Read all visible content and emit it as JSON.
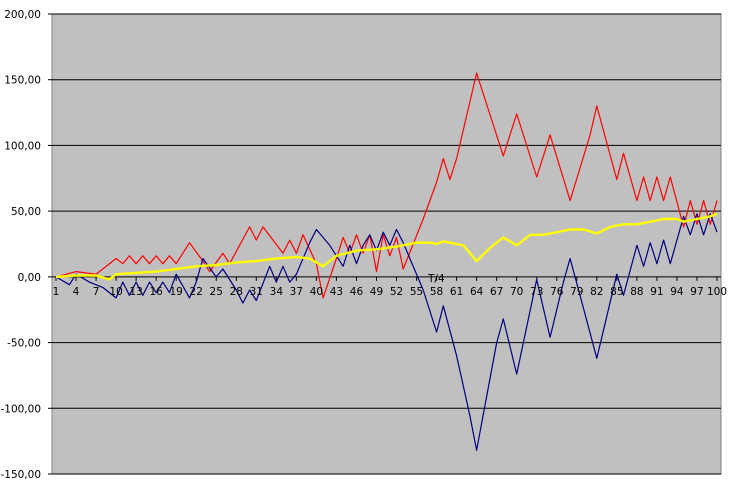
{
  "chart_data": {
    "type": "line",
    "title": "",
    "xlabel": "",
    "ylabel": "",
    "ylim": [
      -150,
      200
    ],
    "xlim": [
      1,
      100
    ],
    "grid": true,
    "legend": "none",
    "plot_background": "#c0c0c0",
    "gridline_color": "#000000",
    "y_ticks": [
      "200,00",
      "150,00",
      "100,00",
      "50,00",
      "0,00",
      "-50,00",
      "-100,00",
      "-150,00"
    ],
    "y_tick_values": [
      200,
      150,
      100,
      50,
      0,
      -50,
      -100,
      -150
    ],
    "x_tick_labels": [
      "1",
      "4",
      "7",
      "10",
      "13",
      "16",
      "19",
      "22",
      "25",
      "28",
      "31",
      "34",
      "37",
      "40",
      "43",
      "46",
      "49",
      "52",
      "55",
      "58",
      "61",
      "64",
      "67",
      "70",
      "73",
      "76",
      "79",
      "82",
      "85",
      "88",
      "91",
      "94",
      "97",
      "100"
    ],
    "x_tick_values": [
      1,
      4,
      7,
      10,
      13,
      16,
      19,
      22,
      25,
      28,
      31,
      34,
      37,
      40,
      43,
      46,
      49,
      52,
      55,
      58,
      61,
      64,
      67,
      70,
      73,
      76,
      79,
      82,
      85,
      88,
      91,
      94,
      97,
      100
    ],
    "series": [
      {
        "color": "#ff0000",
        "points": [
          [
            1,
            0
          ],
          [
            4,
            4
          ],
          [
            7,
            2
          ],
          [
            10,
            14
          ],
          [
            11,
            10
          ],
          [
            12,
            16
          ],
          [
            13,
            10
          ],
          [
            14,
            16
          ],
          [
            15,
            10
          ],
          [
            16,
            16
          ],
          [
            17,
            10
          ],
          [
            18,
            16
          ],
          [
            19,
            10
          ],
          [
            21,
            26
          ],
          [
            23,
            12
          ],
          [
            24,
            4
          ],
          [
            26,
            18
          ],
          [
            27,
            10
          ],
          [
            30,
            38
          ],
          [
            31,
            28
          ],
          [
            32,
            38
          ],
          [
            35,
            18
          ],
          [
            36,
            28
          ],
          [
            37,
            18
          ],
          [
            38,
            32
          ],
          [
            40,
            10
          ],
          [
            41,
            -16
          ],
          [
            43,
            14
          ],
          [
            44,
            30
          ],
          [
            45,
            18
          ],
          [
            46,
            32
          ],
          [
            47,
            18
          ],
          [
            48,
            32
          ],
          [
            49,
            4
          ],
          [
            50,
            32
          ],
          [
            51,
            16
          ],
          [
            52,
            30
          ],
          [
            53,
            6
          ],
          [
            56,
            44
          ],
          [
            58,
            72
          ],
          [
            59,
            90
          ],
          [
            60,
            74
          ],
          [
            61,
            90
          ],
          [
            64,
            155
          ],
          [
            68,
            92
          ],
          [
            70,
            124
          ],
          [
            73,
            76
          ],
          [
            75,
            108
          ],
          [
            78,
            58
          ],
          [
            81,
            108
          ],
          [
            82,
            130
          ],
          [
            85,
            74
          ],
          [
            86,
            94
          ],
          [
            88,
            58
          ],
          [
            89,
            76
          ],
          [
            90,
            58
          ],
          [
            91,
            76
          ],
          [
            92,
            58
          ],
          [
            93,
            76
          ],
          [
            95,
            38
          ],
          [
            96,
            58
          ],
          [
            97,
            40
          ],
          [
            98,
            58
          ],
          [
            99,
            40
          ],
          [
            100,
            58
          ]
        ]
      },
      {
        "color": "#000080",
        "points": [
          [
            1,
            0
          ],
          [
            3,
            -6
          ],
          [
            4,
            2
          ],
          [
            6,
            -4
          ],
          [
            8,
            -8
          ],
          [
            10,
            -16
          ],
          [
            11,
            -4
          ],
          [
            12,
            -14
          ],
          [
            13,
            -4
          ],
          [
            14,
            -14
          ],
          [
            15,
            -4
          ],
          [
            16,
            -12
          ],
          [
            17,
            -4
          ],
          [
            18,
            -12
          ],
          [
            19,
            2
          ],
          [
            21,
            -16
          ],
          [
            22,
            -4
          ],
          [
            23,
            14
          ],
          [
            25,
            0
          ],
          [
            26,
            6
          ],
          [
            28,
            -10
          ],
          [
            29,
            -20
          ],
          [
            30,
            -10
          ],
          [
            31,
            -18
          ],
          [
            33,
            8
          ],
          [
            34,
            -4
          ],
          [
            35,
            8
          ],
          [
            36,
            -4
          ],
          [
            37,
            2
          ],
          [
            39,
            26
          ],
          [
            40,
            36
          ],
          [
            42,
            24
          ],
          [
            44,
            8
          ],
          [
            45,
            24
          ],
          [
            46,
            10
          ],
          [
            47,
            24
          ],
          [
            48,
            32
          ],
          [
            49,
            20
          ],
          [
            50,
            34
          ],
          [
            51,
            24
          ],
          [
            52,
            36
          ],
          [
            53,
            26
          ],
          [
            56,
            -10
          ],
          [
            58,
            -42
          ],
          [
            59,
            -22
          ],
          [
            61,
            -60
          ],
          [
            63,
            -106
          ],
          [
            64,
            -132
          ],
          [
            67,
            -50
          ],
          [
            68,
            -32
          ],
          [
            70,
            -74
          ],
          [
            73,
            -2
          ],
          [
            75,
            -46
          ],
          [
            77,
            -4
          ],
          [
            78,
            14
          ],
          [
            80,
            -24
          ],
          [
            82,
            -62
          ],
          [
            85,
            2
          ],
          [
            86,
            -14
          ],
          [
            88,
            24
          ],
          [
            89,
            8
          ],
          [
            90,
            26
          ],
          [
            91,
            10
          ],
          [
            92,
            28
          ],
          [
            93,
            10
          ],
          [
            95,
            46
          ],
          [
            96,
            32
          ],
          [
            97,
            48
          ],
          [
            98,
            32
          ],
          [
            99,
            48
          ],
          [
            100,
            34
          ]
        ]
      },
      {
        "color": "#ffff00",
        "points": [
          [
            1,
            0
          ],
          [
            4,
            1
          ],
          [
            7,
            1
          ],
          [
            9,
            -2
          ],
          [
            10,
            2
          ],
          [
            13,
            3
          ],
          [
            16,
            4
          ],
          [
            19,
            6
          ],
          [
            22,
            8
          ],
          [
            25,
            9
          ],
          [
            28,
            11
          ],
          [
            31,
            12
          ],
          [
            34,
            14
          ],
          [
            37,
            15
          ],
          [
            39,
            14
          ],
          [
            41,
            8
          ],
          [
            43,
            16
          ],
          [
            46,
            20
          ],
          [
            49,
            21
          ],
          [
            52,
            23
          ],
          [
            55,
            26
          ],
          [
            57,
            26
          ],
          [
            58,
            25
          ],
          [
            59,
            27
          ],
          [
            62,
            24
          ],
          [
            64,
            12
          ],
          [
            66,
            22
          ],
          [
            68,
            30
          ],
          [
            70,
            24
          ],
          [
            72,
            32
          ],
          [
            74,
            32
          ],
          [
            76,
            34
          ],
          [
            78,
            36
          ],
          [
            80,
            36
          ],
          [
            82,
            33
          ],
          [
            84,
            38
          ],
          [
            86,
            40
          ],
          [
            88,
            40
          ],
          [
            90,
            42
          ],
          [
            92,
            44
          ],
          [
            94,
            44
          ],
          [
            95,
            42
          ],
          [
            97,
            44
          ],
          [
            99,
            46
          ],
          [
            100,
            48
          ]
        ]
      }
    ],
    "annotations": [
      "T/4"
    ]
  }
}
